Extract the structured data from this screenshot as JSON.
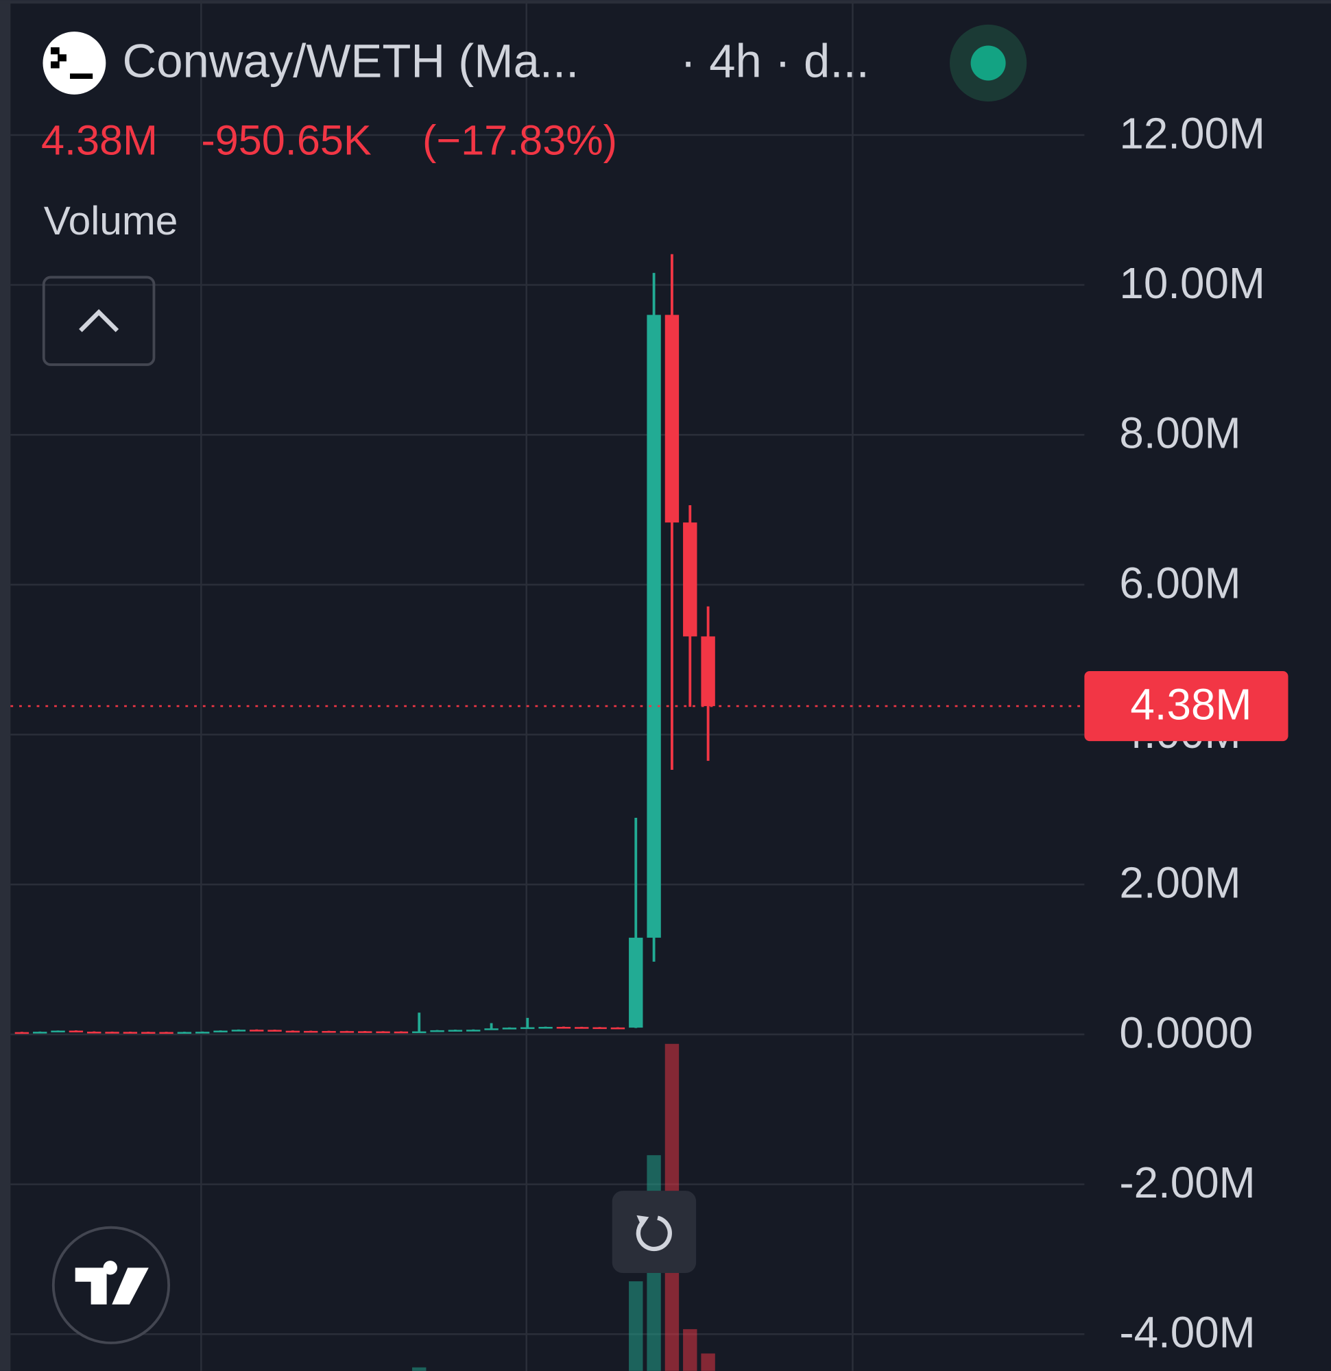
{
  "chart_data": {
    "type": "candlestick",
    "title": "Conway/WETH (Ma...",
    "subtitle": "· 4h · d...",
    "legend_values": [
      "4.38M",
      "-950.65K",
      "(−17.83%)"
    ],
    "volume_title": "Volume",
    "up_color": "#22ab94",
    "down_color": "#f23645",
    "ylim": [
      -4490000,
      13800000
    ],
    "yticks": [
      {
        "value": 12000000,
        "label": "12.00M"
      },
      {
        "value": 10000000,
        "label": "10.00M"
      },
      {
        "value": 8000000,
        "label": "8.00M"
      },
      {
        "value": 6000000,
        "label": "6.00M"
      },
      {
        "value": 4000000,
        "label": "4.00M"
      },
      {
        "value": 2000000,
        "label": "2.00M"
      },
      {
        "value": 0,
        "label": "0.0000"
      },
      {
        "value": -2000000,
        "label": "-2.00M"
      },
      {
        "value": -4000000,
        "label": "-4.00M"
      }
    ],
    "grid": true,
    "price_label": {
      "value": 4380000,
      "label": "4.38M"
    },
    "open": [
      30000,
      28000,
      35000,
      50000,
      36000,
      34000,
      33000,
      32000,
      31000,
      30000,
      32000,
      35000,
      50000,
      62000,
      60000,
      48000,
      46000,
      45000,
      44000,
      42000,
      40000,
      38000,
      36000,
      40000,
      55000,
      60000,
      62000,
      80000,
      90000,
      95000,
      100000,
      98000,
      95000,
      92000,
      90000,
      1290000,
      9600000,
      6830000,
      5310000
    ],
    "high": [
      34000,
      38000,
      52000,
      54000,
      40000,
      37000,
      36000,
      35000,
      34000,
      35000,
      38000,
      53000,
      65000,
      66000,
      63000,
      52000,
      49000,
      48000,
      47000,
      45000,
      43000,
      41000,
      290000,
      58000,
      63000,
      66000,
      150000,
      93000,
      220000,
      103000,
      104000,
      101000,
      98000,
      95000,
      2890000,
      10160000,
      10410000,
      7060000,
      5710000
    ],
    "low": [
      25000,
      25000,
      32000,
      33000,
      31000,
      30000,
      29000,
      28000,
      27000,
      27000,
      29000,
      32000,
      47000,
      57000,
      45000,
      43000,
      42000,
      41000,
      39000,
      37000,
      35000,
      33000,
      33000,
      37000,
      52000,
      57000,
      59000,
      77000,
      87000,
      92000,
      95000,
      92000,
      89000,
      87000,
      85000,
      970000,
      3530000,
      4370000,
      3650000
    ],
    "close": [
      28000,
      35000,
      50000,
      36000,
      34000,
      33000,
      32000,
      31000,
      30000,
      32000,
      35000,
      50000,
      62000,
      60000,
      48000,
      46000,
      45000,
      44000,
      42000,
      40000,
      38000,
      36000,
      40000,
      55000,
      60000,
      62000,
      80000,
      90000,
      95000,
      100000,
      98000,
      95000,
      92000,
      90000,
      1290000,
      9600000,
      6830000,
      5310000,
      4380000
    ],
    "volume_ylim": [
      0,
      390
    ],
    "volume": [
      0,
      0,
      0,
      0,
      0,
      0,
      0,
      0,
      0,
      0,
      0,
      0,
      0,
      0,
      0,
      0,
      0,
      0,
      0,
      0,
      0,
      0,
      4,
      0,
      0,
      0,
      0,
      0,
      0,
      0,
      0,
      0,
      0,
      0,
      103,
      248,
      376,
      48,
      20
    ]
  }
}
